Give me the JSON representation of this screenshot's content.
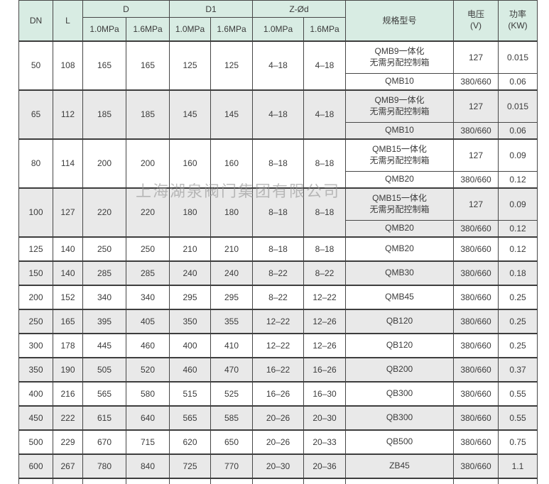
{
  "watermark": "上海湖泉阀门集团有限公司",
  "header": {
    "dn": "DN",
    "l": "L",
    "d": "D",
    "d1": "D1",
    "z": "Z-Ød",
    "spec": "规格型号",
    "voltage": "电压\n(V)",
    "power": "功率\n(KW)",
    "mpa10": "1.0MPa",
    "mpa16": "1.6MPa"
  },
  "rows": [
    {
      "dn": "50",
      "l": "108",
      "d10": "165",
      "d16": "165",
      "d1_10": "125",
      "d1_16": "125",
      "z10": "4–18",
      "z16": "4–18",
      "specs": [
        {
          "model": "QMB9一体化\n无需另配控制箱",
          "voltage": "127",
          "power": "0.015"
        },
        {
          "model": "QMB10",
          "voltage": "380/660",
          "power": "0.06"
        }
      ]
    },
    {
      "dn": "65",
      "l": "112",
      "d10": "185",
      "d16": "185",
      "d1_10": "145",
      "d1_16": "145",
      "z10": "4–18",
      "z16": "4–18",
      "specs": [
        {
          "model": "QMB9一体化\n无需另配控制箱",
          "voltage": "127",
          "power": "0.015"
        },
        {
          "model": "QMB10",
          "voltage": "380/660",
          "power": "0.06"
        }
      ]
    },
    {
      "dn": "80",
      "l": "114",
      "d10": "200",
      "d16": "200",
      "d1_10": "160",
      "d1_16": "160",
      "z10": "8–18",
      "z16": "8–18",
      "specs": [
        {
          "model": "QMB15一体化\n无需另配控制箱",
          "voltage": "127",
          "power": "0.09"
        },
        {
          "model": "QMB20",
          "voltage": "380/660",
          "power": "0.12"
        }
      ]
    },
    {
      "dn": "100",
      "l": "127",
      "d10": "220",
      "d16": "220",
      "d1_10": "180",
      "d1_16": "180",
      "z10": "8–18",
      "z16": "8–18",
      "specs": [
        {
          "model": "QMB15一体化\n无需另配控制箱",
          "voltage": "127",
          "power": "0.09"
        },
        {
          "model": "QMB20",
          "voltage": "380/660",
          "power": "0.12"
        }
      ]
    },
    {
      "dn": "125",
      "l": "140",
      "d10": "250",
      "d16": "250",
      "d1_10": "210",
      "d1_16": "210",
      "z10": "8–18",
      "z16": "8–18",
      "specs": [
        {
          "model": "QMB20",
          "voltage": "380/660",
          "power": "0.12"
        }
      ]
    },
    {
      "dn": "150",
      "l": "140",
      "d10": "285",
      "d16": "285",
      "d1_10": "240",
      "d1_16": "240",
      "z10": "8–22",
      "z16": "8–22",
      "specs": [
        {
          "model": "QMB30",
          "voltage": "380/660",
          "power": "0.18"
        }
      ]
    },
    {
      "dn": "200",
      "l": "152",
      "d10": "340",
      "d16": "340",
      "d1_10": "295",
      "d1_16": "295",
      "z10": "8–22",
      "z16": "12–22",
      "specs": [
        {
          "model": "QMB45",
          "voltage": "380/660",
          "power": "0.25"
        }
      ]
    },
    {
      "dn": "250",
      "l": "165",
      "d10": "395",
      "d16": "405",
      "d1_10": "350",
      "d1_16": "355",
      "z10": "12–22",
      "z16": "12–26",
      "specs": [
        {
          "model": "QB120",
          "voltage": "380/660",
          "power": "0.25"
        }
      ]
    },
    {
      "dn": "300",
      "l": "178",
      "d10": "445",
      "d16": "460",
      "d1_10": "400",
      "d1_16": "410",
      "z10": "12–22",
      "z16": "12–26",
      "specs": [
        {
          "model": "QB120",
          "voltage": "380/660",
          "power": "0.25"
        }
      ]
    },
    {
      "dn": "350",
      "l": "190",
      "d10": "505",
      "d16": "520",
      "d1_10": "460",
      "d1_16": "470",
      "z10": "16–22",
      "z16": "16–26",
      "specs": [
        {
          "model": "QB200",
          "voltage": "380/660",
          "power": "0.37"
        }
      ]
    },
    {
      "dn": "400",
      "l": "216",
      "d10": "565",
      "d16": "580",
      "d1_10": "515",
      "d1_16": "525",
      "z10": "16–26",
      "z16": "16–30",
      "specs": [
        {
          "model": "QB300",
          "voltage": "380/660",
          "power": "0.55"
        }
      ]
    },
    {
      "dn": "450",
      "l": "222",
      "d10": "615",
      "d16": "640",
      "d1_10": "565",
      "d1_16": "585",
      "z10": "20–26",
      "z16": "20–30",
      "specs": [
        {
          "model": "QB300",
          "voltage": "380/660",
          "power": "0.55"
        }
      ]
    },
    {
      "dn": "500",
      "l": "229",
      "d10": "670",
      "d16": "715",
      "d1_10": "620",
      "d1_16": "650",
      "z10": "20–26",
      "z16": "20–33",
      "specs": [
        {
          "model": "QB500",
          "voltage": "380/660",
          "power": "0.75"
        }
      ]
    },
    {
      "dn": "600",
      "l": "267",
      "d10": "780",
      "d16": "840",
      "d1_10": "725",
      "d1_16": "770",
      "z10": "20–30",
      "z16": "20–36",
      "specs": [
        {
          "model": "ZB45",
          "voltage": "380/660",
          "power": "1.1"
        }
      ]
    }
  ]
}
